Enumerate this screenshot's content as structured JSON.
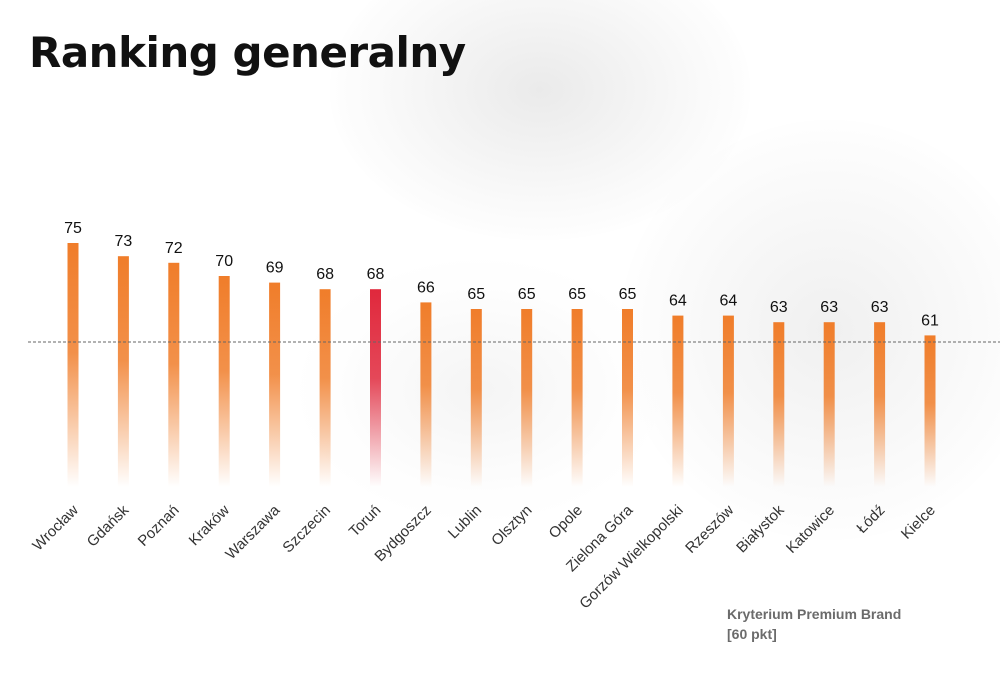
{
  "title": "Ranking generalny",
  "note": {
    "line1": "Kryterium Premium Brand",
    "line2": "[60 pkt]"
  },
  "colors": {
    "bar": "#F07D2A",
    "highlight_bar": "#E0283C",
    "reference_line": "#666666",
    "text": "#111111"
  },
  "chart_data": {
    "type": "bar",
    "title": "Ranking generalny",
    "categories": [
      "Wrocław",
      "Gdańsk",
      "Poznań",
      "Kraków",
      "Warszawa",
      "Szczecin",
      "Toruń",
      "Bydgoszcz",
      "Lublin",
      "Olsztyn",
      "Opole",
      "Zielona Góra",
      "Gorzów Wielkopolski",
      "Rzeszów",
      "Białystok",
      "Katowice",
      "Łódź",
      "Kielce"
    ],
    "values": [
      75,
      73,
      72,
      70,
      69,
      68,
      68,
      66,
      65,
      65,
      65,
      65,
      64,
      64,
      63,
      63,
      63,
      61
    ],
    "highlight": "Toruń",
    "reference_line": 60,
    "reference_label": "Kryterium Premium Brand [60 pkt]",
    "data_labels": true,
    "xlabel": "",
    "ylabel": "",
    "grid": false,
    "legend": "none"
  }
}
